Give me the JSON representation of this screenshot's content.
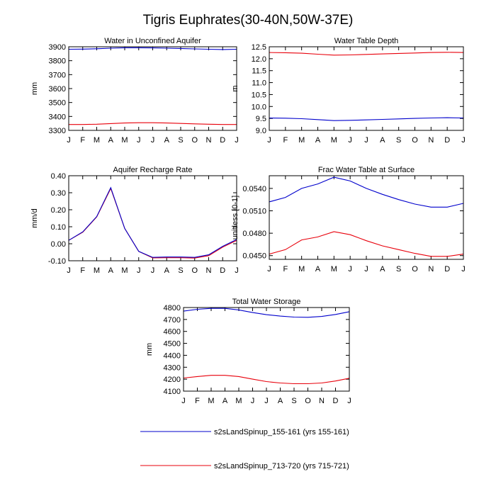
{
  "figure": {
    "title": "Tigris Euphrates(30-40N,50W-37E)",
    "months": [
      "J",
      "F",
      "M",
      "A",
      "M",
      "J",
      "J",
      "A",
      "S",
      "O",
      "N",
      "D",
      "J"
    ],
    "colors": {
      "run1": "#0000cc",
      "run2": "#e8000b",
      "axis": "#000000"
    },
    "legend": [
      {
        "label": "s2sLandSpinup_155-161 (yrs 155-161)",
        "color": "#0000cc"
      },
      {
        "label": "s2sLandSpinup_713-720 (yrs 715-721)",
        "color": "#e8000b"
      }
    ]
  },
  "chart_data": [
    {
      "type": "line",
      "title": "Water in Unconfined Aquifer",
      "ylabel": "mm",
      "ylim": [
        3300,
        3900
      ],
      "yticks": [
        3300,
        3400,
        3500,
        3600,
        3700,
        3800,
        3900
      ],
      "ytick_labels": [
        "3300",
        "3400",
        "3500",
        "3600",
        "3700",
        "3800",
        "3900"
      ],
      "series": [
        {
          "name": "s2sLandSpinup_155-161 (yrs 155-161)",
          "values": [
            3882,
            3883,
            3886,
            3890,
            3893,
            3893,
            3892,
            3890,
            3888,
            3885,
            3882,
            3880,
            3882
          ]
        },
        {
          "name": "s2sLandSpinup_713-720 (yrs 715-721)",
          "values": [
            3342,
            3342,
            3344,
            3349,
            3353,
            3355,
            3355,
            3353,
            3350,
            3347,
            3344,
            3342,
            3342
          ]
        }
      ]
    },
    {
      "type": "line",
      "title": "Water Table Depth",
      "ylabel": "m",
      "ylim": [
        9.0,
        12.5
      ],
      "yticks": [
        9.0,
        9.5,
        10.0,
        10.5,
        11.0,
        11.5,
        12.0,
        12.5
      ],
      "ytick_labels": [
        "9.0",
        "9.5",
        "10.0",
        "10.5",
        "11.0",
        "11.5",
        "12.0",
        "12.5"
      ],
      "series": [
        {
          "name": "s2sLandSpinup_155-161 (yrs 155-161)",
          "values": [
            9.52,
            9.51,
            9.49,
            9.45,
            9.41,
            9.42,
            9.44,
            9.46,
            9.48,
            9.5,
            9.52,
            9.53,
            9.52
          ]
        },
        {
          "name": "s2sLandSpinup_713-720 (yrs 715-721)",
          "values": [
            12.26,
            12.25,
            12.23,
            12.19,
            12.15,
            12.16,
            12.18,
            12.2,
            12.22,
            12.24,
            12.26,
            12.27,
            12.26
          ]
        }
      ]
    },
    {
      "type": "line",
      "title": "Aquifer Recharge Rate",
      "ylabel": "mm/d",
      "ylim": [
        -0.1,
        0.4
      ],
      "yticks": [
        -0.1,
        0.0,
        0.1,
        0.2,
        0.3,
        0.4
      ],
      "ytick_labels": [
        "-0.10",
        "0.00",
        "0.10",
        "0.20",
        "0.30",
        "0.40"
      ],
      "series": [
        {
          "name": "s2sLandSpinup_155-161 (yrs 155-161)",
          "values": [
            0.02,
            0.07,
            0.16,
            0.33,
            0.09,
            -0.045,
            -0.08,
            -0.078,
            -0.078,
            -0.08,
            -0.065,
            -0.015,
            0.025
          ]
        },
        {
          "name": "s2sLandSpinup_713-720 (yrs 715-721)",
          "values": [
            0.02,
            0.068,
            0.158,
            0.325,
            0.09,
            -0.045,
            -0.083,
            -0.082,
            -0.082,
            -0.084,
            -0.07,
            -0.02,
            0.02
          ]
        }
      ]
    },
    {
      "type": "line",
      "title": "Frac Water Table at Surface",
      "ylabel": "unitless [0-1]",
      "ylim": [
        0.0445,
        0.0557
      ],
      "yticks": [
        0.045,
        0.048,
        0.051,
        0.054
      ],
      "ytick_labels": [
        "0.0450",
        "0.0480",
        "0.0510",
        "0.0540"
      ],
      "series": [
        {
          "name": "s2sLandSpinup_155-161 (yrs 155-161)",
          "values": [
            0.0522,
            0.0528,
            0.054,
            0.0546,
            0.0555,
            0.055,
            0.054,
            0.0532,
            0.0525,
            0.0519,
            0.0515,
            0.0515,
            0.052
          ]
        },
        {
          "name": "s2sLandSpinup_713-720 (yrs 715-721)",
          "values": [
            0.0452,
            0.0458,
            0.0471,
            0.0475,
            0.0482,
            0.0478,
            0.047,
            0.0463,
            0.0458,
            0.0453,
            0.0449,
            0.0449,
            0.0452
          ]
        }
      ]
    },
    {
      "type": "line",
      "title": "Total Water Storage",
      "ylabel": "mm",
      "ylim": [
        4100,
        4800
      ],
      "yticks": [
        4100,
        4200,
        4300,
        4400,
        4500,
        4600,
        4700,
        4800
      ],
      "ytick_labels": [
        "4100",
        "4200",
        "4300",
        "4400",
        "4500",
        "4600",
        "4700",
        "4800"
      ],
      "series": [
        {
          "name": "s2sLandSpinup_155-161 (yrs 155-161)",
          "values": [
            4770,
            4785,
            4793,
            4793,
            4780,
            4758,
            4740,
            4728,
            4720,
            4718,
            4725,
            4742,
            4765
          ]
        },
        {
          "name": "s2sLandSpinup_713-720 (yrs 715-721)",
          "values": [
            4210,
            4222,
            4232,
            4232,
            4222,
            4200,
            4180,
            4168,
            4162,
            4162,
            4168,
            4185,
            4208
          ]
        }
      ]
    }
  ]
}
